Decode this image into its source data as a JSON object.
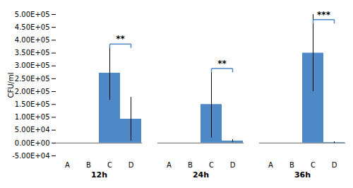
{
  "chart_data": {
    "type": "bar",
    "groups": [
      "12h",
      "24h",
      "36h"
    ],
    "categories": [
      "A",
      "B",
      "C",
      "D"
    ],
    "values": [
      [
        0,
        0,
        272000,
        93000
      ],
      [
        0,
        0,
        150000,
        8000
      ],
      [
        0,
        0,
        350000,
        2000
      ]
    ],
    "errors": [
      [
        0,
        0,
        105000,
        85000
      ],
      [
        0,
        0,
        130000,
        5000
      ],
      [
        0,
        0,
        150000,
        3000
      ]
    ],
    "color": "#4e88c7",
    "ylabel": "CFU/ml",
    "ylim": [
      -50000,
      500000
    ],
    "yticks": [
      {
        "value": -50000,
        "label": "-5.00E+04"
      },
      {
        "value": 0,
        "label": "0.00E+00"
      },
      {
        "value": 50000,
        "label": "5.00E+04"
      },
      {
        "value": 100000,
        "label": "1.00E+05"
      },
      {
        "value": 150000,
        "label": "1.50E+05"
      },
      {
        "value": 200000,
        "label": "2.00E+05"
      },
      {
        "value": 250000,
        "label": "2.50E+05"
      },
      {
        "value": 300000,
        "label": "3.00E+05"
      },
      {
        "value": 350000,
        "label": "3.50E+05"
      },
      {
        "value": 400000,
        "label": "4.00E+05"
      },
      {
        "value": 450000,
        "label": "4.50E+05"
      },
      {
        "value": 500000,
        "label": "5.00E+05"
      }
    ],
    "annotations": [
      {
        "label": "**",
        "group": "12h",
        "from": "C",
        "to": "D",
        "y": 385000
      },
      {
        "label": "**",
        "group": "24h",
        "from": "C",
        "to": "D",
        "y": 290000
      },
      {
        "label": "***",
        "group": "36h",
        "from": "C",
        "to": "D",
        "y": 480000
      }
    ],
    "bracket_drop": 15000
  }
}
